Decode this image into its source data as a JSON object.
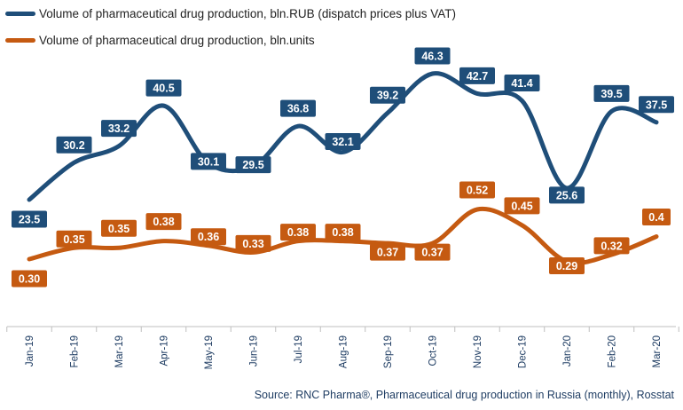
{
  "chart_data": {
    "type": "line",
    "categories": [
      "Jan-19",
      "Feb-19",
      "Mar-19",
      "Apr-19",
      "May-19",
      "Jun-19",
      "Jul-19",
      "Aug-19",
      "Sep-19",
      "Oct-19",
      "Nov-19",
      "Dec-19",
      "Jan-20",
      "Feb-20",
      "Mar-20"
    ],
    "series": [
      {
        "name": "Volume of pharmaceutical drug production, bln.RUB (dispatch prices plus VAT)",
        "values": [
          23.5,
          30.2,
          33.2,
          40.5,
          30.1,
          29.5,
          36.8,
          32.1,
          39.2,
          46.3,
          42.7,
          41.4,
          25.6,
          39.5,
          37.5
        ],
        "labels": [
          "23.5",
          "30.2",
          "33.2",
          "40.5",
          "30.1",
          "29.5",
          "36.8",
          "32.1",
          "39.2",
          "46.3",
          "42.7",
          "41.4",
          "25.6",
          "39.5",
          "37.5"
        ],
        "color": "#1f4e79"
      },
      {
        "name": "Volume of pharmaceutical drug production, bln.units",
        "values": [
          0.3,
          0.35,
          0.35,
          0.38,
          0.36,
          0.33,
          0.38,
          0.38,
          0.37,
          0.37,
          0.52,
          0.45,
          0.29,
          0.32,
          0.4
        ],
        "labels": [
          "0.30",
          "0.35",
          "0.35",
          "0.38",
          "0.36",
          "0.33",
          "0.38",
          "0.38",
          "0.37",
          "0.37",
          "0.52",
          "0.45",
          "0.29",
          "0.32",
          "0.4"
        ],
        "color": "#c55a11"
      }
    ],
    "source": "Source: RNC Pharma®,  Pharmaceutical drug production in Russia (monthly), Rosstat"
  }
}
